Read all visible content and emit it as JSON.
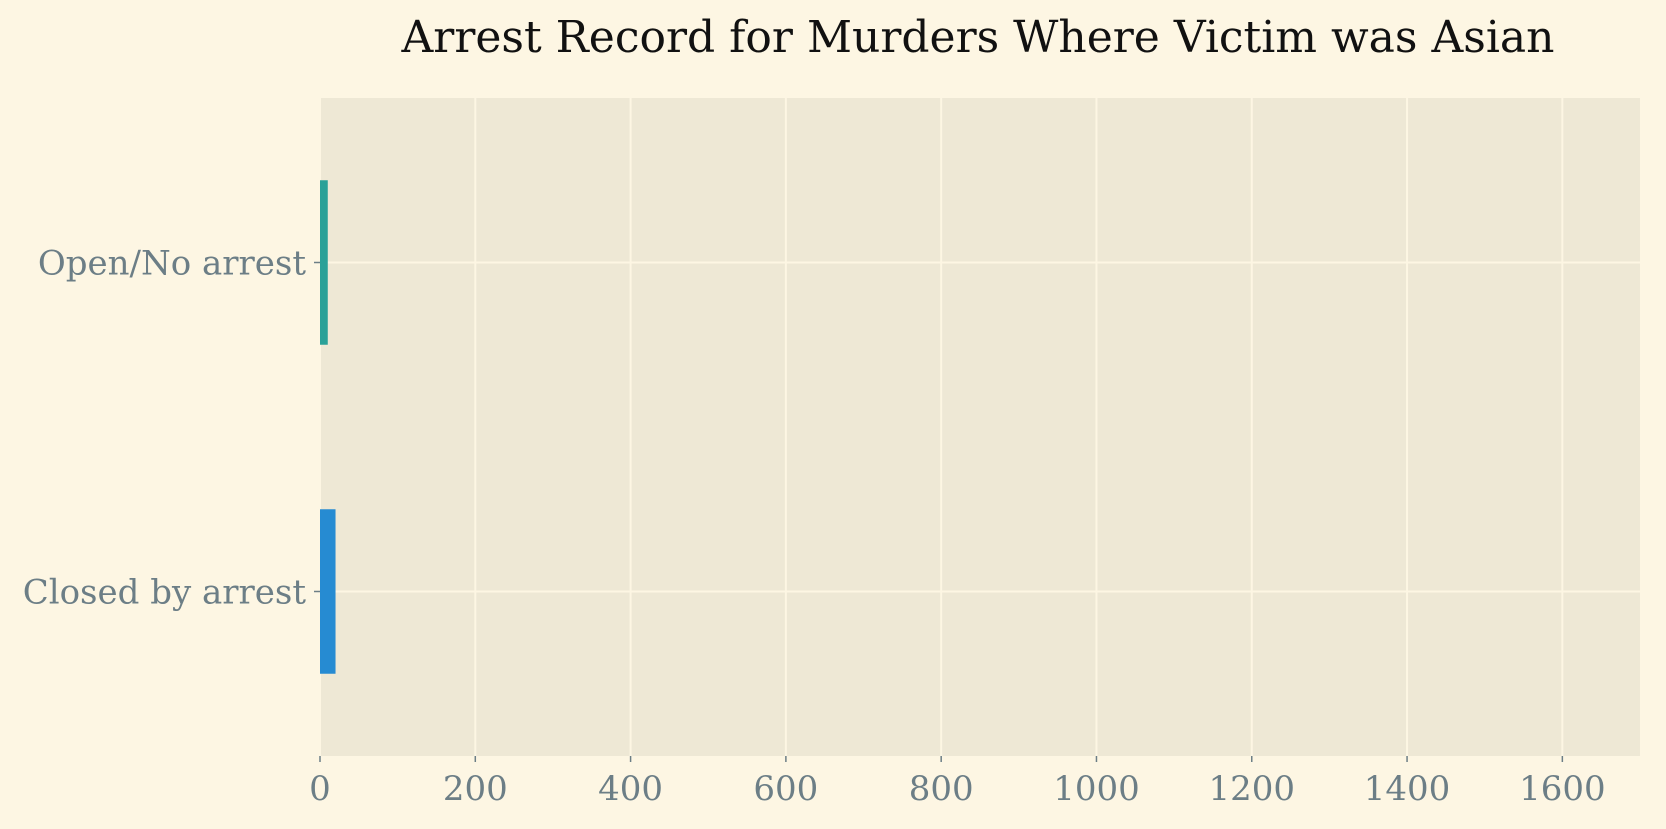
{
  "chart_data": {
    "type": "bar",
    "orientation": "horizontal",
    "title": "Arrest Record for Murders Where Victim was Asian",
    "xlabel": "",
    "ylabel": "",
    "categories": [
      "Open/No arrest",
      "Closed by arrest"
    ],
    "values": [
      10,
      20
    ],
    "bar_colors": [
      "#2aa198",
      "#268bd2"
    ],
    "xlim": [
      0,
      1700
    ],
    "xticks": [
      0,
      200,
      400,
      600,
      800,
      1000,
      1200,
      1400,
      1600
    ],
    "grid": true,
    "legend": "none"
  },
  "colors": {
    "page_background": "#fdf6e3",
    "plot_background": "#eee8d5",
    "grid": "#fdf6e3",
    "tick_text": "#6c7e86",
    "title_text": "#111111"
  }
}
